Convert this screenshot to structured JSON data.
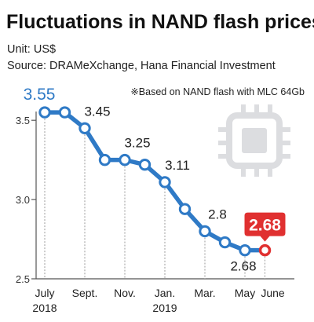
{
  "header": {
    "title": "Fluctuations in NAND flash prices",
    "unit": "Unit: US$",
    "source": "Source: DRAMeXchange, Hana Financial Investment",
    "note": "※Based on NAND flash with MLC 64Gb"
  },
  "colors": {
    "line": "#2f7ac6",
    "highlight": "#e03030",
    "chip_icon": "#dcdde0"
  },
  "chart_data": {
    "type": "line",
    "x": [
      "2018-07",
      "2018-08",
      "2018-09",
      "2018-10",
      "2018-11",
      "2018-12",
      "2019-01",
      "2019-02",
      "2019-03",
      "2019-04",
      "2019-05",
      "2019-06"
    ],
    "series": [
      {
        "values": [
          3.55,
          3.55,
          3.45,
          3.25,
          3.25,
          3.22,
          3.11,
          2.94,
          2.8,
          2.73,
          2.68,
          2.68
        ]
      }
    ],
    "data_labels": [
      {
        "index": 0,
        "text": "3.55"
      },
      {
        "index": 2,
        "text": "3.45"
      },
      {
        "index": 4,
        "text": "3.25"
      },
      {
        "index": 6,
        "text": "3.11"
      },
      {
        "index": 8,
        "text": "2.8"
      },
      {
        "index": 10,
        "text": "2.68"
      },
      {
        "index": 11,
        "text": "2.68"
      }
    ],
    "x_ticks": [
      {
        "index": 0,
        "lines": [
          "July",
          "2018"
        ]
      },
      {
        "index": 2,
        "lines": [
          "Sept."
        ]
      },
      {
        "index": 4,
        "lines": [
          "Nov."
        ]
      },
      {
        "index": 6,
        "lines": [
          "Jan.",
          "2019"
        ]
      },
      {
        "index": 8,
        "lines": [
          "Mar."
        ]
      },
      {
        "index": 10,
        "lines": [
          "May"
        ]
      },
      {
        "index": 11,
        "lines": [
          "June"
        ]
      }
    ],
    "y_ticks": [
      "2.5",
      "3.0",
      "3.5"
    ],
    "ylim": [
      2.5,
      3.6
    ],
    "grid": false
  }
}
